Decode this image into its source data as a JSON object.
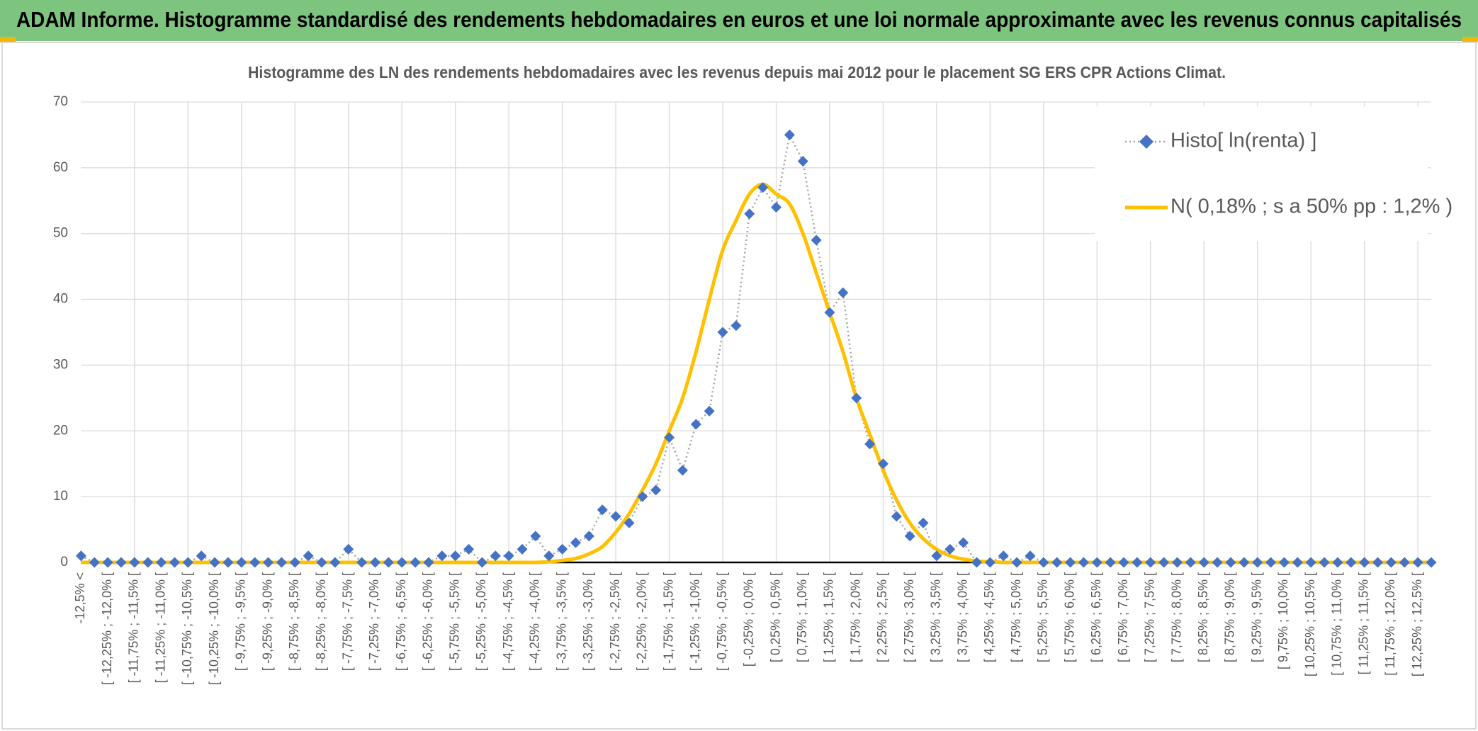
{
  "header": {
    "title": "ADAM Informe. Histogramme standardisé des rendements hebdomadaires en euros et une loi normale approximante avec les revenus connus capitalisés"
  },
  "chart_data": {
    "type": "line",
    "title": "Histogramme des LN des rendements hebdomadaires avec les revenus depuis mai 2012 pour le placement SG ERS CPR Actions Climat.",
    "categories": [
      "-12,5% <",
      null,
      "[ -12,25% ; -12,0% [",
      null,
      "[ -11,75% ; -11,5% [",
      null,
      "[ -11,25% ; -11,0% [",
      null,
      "[ -10,75% ; -10,5% [",
      null,
      "[ -10,25% ; -10,0% [",
      null,
      "[ -9,75% ; -9,5% [",
      null,
      "[ -9,25% ; -9,0% [",
      null,
      "[ -8,75% ; -8,5% [",
      null,
      "[ -8,25% ; -8,0% [",
      null,
      "[ -7,75% ; -7,5% [",
      null,
      "[ -7,25% ; -7,0% [",
      null,
      "[ -6,75% ; -6,5% [",
      null,
      "[ -6,25% ; -6,0% [",
      null,
      "[ -5,75% ; -5,5% [",
      null,
      "[ -5,25% ; -5,0% [",
      null,
      "[ -4,75% ; -4,5% [",
      null,
      "[ -4,25% ; -4,0% [",
      null,
      "[ -3,75% ; -3,5% [",
      null,
      "[ -3,25% ; -3,0% [",
      null,
      "[ -2,75% ; -2,5% [",
      null,
      "[ -2,25% ; -2,0% [",
      null,
      "[ -1,75% ; -1,5% [",
      null,
      "[ -1,25% ; -1,0% [",
      null,
      "[ -0,75% ; -0,5% [",
      null,
      "[ -0,25% ; 0,0% [",
      null,
      "[ 0,25% ; 0,5% [",
      null,
      "[ 0,75% ; 1,0% [",
      null,
      "[ 1,25% ; 1,5% [",
      null,
      "[ 1,75% ; 2,0% [",
      null,
      "[ 2,25% ; 2,5% [",
      null,
      "[ 2,75% ; 3,0% [",
      null,
      "[ 3,25% ; 3,5% [",
      null,
      "[ 3,75% ; 4,0% [",
      null,
      "[ 4,25% ; 4,5% [",
      null,
      "[ 4,75% ; 5,0% [",
      null,
      "[ 5,25% ; 5,5% [",
      null,
      "[ 5,75% ; 6,0% [",
      null,
      "[ 6,25% ; 6,5% [",
      null,
      "[ 6,75% ; 7,0% [",
      null,
      "[ 7,25% ; 7,5% [",
      null,
      "[ 7,75% ; 8,0% [",
      null,
      "[ 8,25% ; 8,5% [",
      null,
      "[ 8,75% ; 9,0% [",
      null,
      "[ 9,25% ; 9,5% [",
      null,
      "[ 9,75% ; 10,0% [",
      null,
      "[ 10,25% ; 10,5% [",
      null,
      "[ 10,75% ; 11,0% [",
      null,
      "[ 11,25% ; 11,5% [",
      null,
      "[ 11,75% ; 12,0% [",
      null,
      "[ 12,25% ; 12,5% [",
      null
    ],
    "series": [
      {
        "name": "Histo[ ln(renta) ]",
        "color": "#4472c4",
        "line_color": "#a5a5a5",
        "values": [
          1,
          0,
          0,
          0,
          0,
          0,
          0,
          0,
          0,
          1,
          0,
          0,
          0,
          0,
          0,
          0,
          0,
          1,
          0,
          0,
          2,
          0,
          0,
          0,
          0,
          0,
          0,
          1,
          1,
          2,
          0,
          1,
          1,
          2,
          4,
          1,
          2,
          3,
          4,
          8,
          7,
          6,
          10,
          11,
          19,
          14,
          21,
          23,
          35,
          36,
          53,
          57,
          54,
          65,
          61,
          49,
          38,
          41,
          25,
          18,
          15,
          7,
          4,
          6,
          1,
          2,
          3,
          0,
          0,
          1,
          0,
          1,
          0,
          0,
          0,
          0,
          0,
          0,
          0,
          0,
          0,
          0,
          0,
          0,
          0,
          0,
          0,
          0,
          0,
          0,
          0,
          0,
          0,
          0,
          0,
          0,
          0,
          0,
          0,
          0,
          0,
          0
        ]
      },
      {
        "name": "N( 0,18% ; s a 50% pp : 1,2% )",
        "color": "#ffc000",
        "values": [
          0,
          0,
          0,
          0,
          0,
          0,
          0,
          0,
          0,
          0,
          0,
          0,
          0,
          0,
          0,
          0,
          0,
          0,
          0,
          0,
          0,
          0,
          0,
          0,
          0,
          0,
          0,
          0,
          0,
          0,
          0,
          0,
          0,
          0,
          0,
          0.1,
          0.3,
          0.6,
          1.3,
          2.4,
          4.6,
          7.4,
          11,
          15,
          20,
          25,
          32,
          40,
          47.5,
          52,
          56,
          57.5,
          56,
          54.5,
          50,
          44,
          38,
          32,
          25,
          19.5,
          14,
          9.5,
          6,
          3.6,
          2,
          1,
          0.5,
          0.2,
          0.1,
          0,
          0,
          0,
          0,
          0,
          0,
          0,
          0,
          0,
          0,
          0,
          0,
          0,
          0,
          0,
          0,
          0,
          0,
          0,
          0,
          0,
          0,
          0,
          0,
          0,
          0,
          0,
          0,
          0,
          0,
          0,
          0,
          0
        ]
      }
    ],
    "ylim": [
      0,
      70
    ],
    "yticks": [
      0,
      10,
      20,
      30,
      40,
      50,
      60,
      70
    ],
    "grid": true,
    "legend": "top-right"
  }
}
